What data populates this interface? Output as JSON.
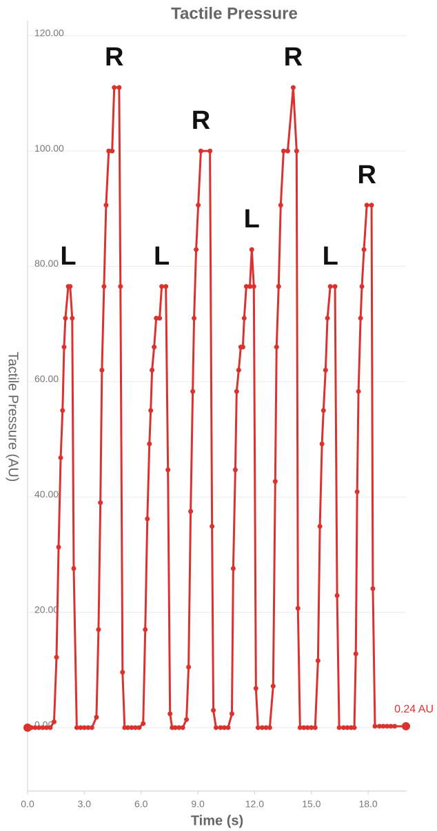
{
  "chart_data": {
    "type": "line",
    "title": "Tactile Pressure",
    "x_label": "Time (s)",
    "y_label": "Tactile Pressure (AU)",
    "xlim": [
      0,
      20
    ],
    "ylim": [
      -11,
      122
    ],
    "xticks": [
      {
        "value": 0,
        "label": "0.0"
      },
      {
        "value": 3,
        "label": "3.0"
      },
      {
        "value": 6,
        "label": "6.0"
      },
      {
        "value": 9,
        "label": "9.0"
      },
      {
        "value": 12,
        "label": "12.0"
      },
      {
        "value": 15,
        "label": "15.0"
      },
      {
        "value": 18,
        "label": "18.0"
      }
    ],
    "yticks": [
      {
        "value": 0,
        "label": "0.00"
      },
      {
        "value": 20,
        "label": "20.00"
      },
      {
        "value": 40,
        "label": "40.00"
      },
      {
        "value": 60,
        "label": "60.00"
      },
      {
        "value": 80,
        "label": "80.00"
      },
      {
        "value": 100,
        "label": "100.00"
      },
      {
        "value": 120,
        "label": "120.00"
      }
    ],
    "grid": true,
    "series": [
      {
        "name": "Tactile Pressure",
        "color": "#d8332f",
        "x": [
          0,
          0.2,
          0.4,
          0.6,
          0.8,
          1.0,
          1.2,
          1.4,
          1.53,
          1.64,
          1.75,
          1.85,
          1.93,
          2.0,
          2.15,
          2.25,
          2.36,
          2.44,
          2.6,
          2.8,
          3.0,
          3.2,
          3.4,
          3.64,
          3.75,
          3.85,
          3.93,
          4.04,
          4.15,
          4.29,
          4.47,
          4.58,
          4.84,
          4.91,
          5.02,
          5.13,
          5.3,
          5.5,
          5.7,
          5.9,
          6.11,
          6.22,
          6.33,
          6.44,
          6.51,
          6.58,
          6.69,
          6.8,
          6.98,
          7.09,
          7.31,
          7.42,
          7.53,
          7.64,
          7.8,
          8.0,
          8.2,
          8.4,
          8.51,
          8.62,
          8.73,
          8.8,
          8.91,
          9.02,
          9.16,
          9.64,
          9.75,
          9.82,
          9.96,
          10.2,
          10.4,
          10.6,
          10.8,
          10.87,
          10.98,
          11.05,
          11.16,
          11.27,
          11.38,
          11.45,
          11.56,
          11.75,
          11.85,
          11.96,
          12.07,
          12.18,
          12.4,
          12.6,
          12.8,
          12.98,
          13.09,
          13.16,
          13.27,
          13.38,
          13.53,
          13.75,
          14.04,
          14.22,
          14.29,
          14.4,
          14.6,
          14.8,
          15.0,
          15.2,
          15.35,
          15.45,
          15.56,
          15.64,
          15.75,
          15.85,
          16.0,
          16.25,
          16.36,
          16.47,
          16.7,
          16.9,
          17.1,
          17.27,
          17.35,
          17.42,
          17.49,
          17.6,
          17.67,
          17.78,
          17.93,
          18.18,
          18.25,
          18.36,
          18.6,
          18.8,
          19.0,
          19.2,
          19.4,
          20.0
        ],
        "values": [
          0,
          0,
          0,
          0,
          0,
          0,
          0,
          1,
          12.2,
          31.3,
          46.8,
          55,
          66,
          71,
          76.5,
          76.5,
          71,
          27.6,
          0,
          0,
          0,
          0,
          0,
          1.8,
          17,
          39,
          62,
          76.5,
          90.6,
          100,
          100,
          111,
          111,
          76.5,
          9.6,
          0,
          0,
          0,
          0,
          0,
          0.7,
          17,
          36.2,
          49.2,
          55,
          62,
          66,
          71,
          71,
          76.5,
          76.5,
          44.7,
          2.4,
          0,
          0,
          0,
          0,
          1.4,
          10.5,
          37.5,
          58.3,
          71,
          82.9,
          90.6,
          100,
          100,
          34.9,
          3,
          0,
          0,
          0,
          0,
          2.4,
          27.6,
          44.7,
          58.3,
          62,
          66,
          66,
          71,
          76.5,
          76.5,
          82.9,
          76.5,
          6.8,
          0,
          0,
          0,
          0,
          7.2,
          42.7,
          66,
          76.5,
          90.6,
          100,
          100,
          111,
          100,
          20.7,
          0,
          0,
          0,
          0,
          0,
          11.6,
          34.9,
          49.2,
          55,
          62,
          71,
          76.5,
          76.5,
          22.9,
          0,
          0,
          0,
          0,
          0,
          12.8,
          40.9,
          58.3,
          71,
          76.5,
          82.9,
          90.6,
          90.6,
          24.1,
          0.24,
          0.24,
          0.24,
          0.24,
          0.24,
          0.24,
          0.24
        ]
      }
    ],
    "annotations": [
      "L",
      "R",
      "L",
      "R",
      "L",
      "R",
      "L",
      "R"
    ],
    "last_value_label": "0.24 AU"
  }
}
